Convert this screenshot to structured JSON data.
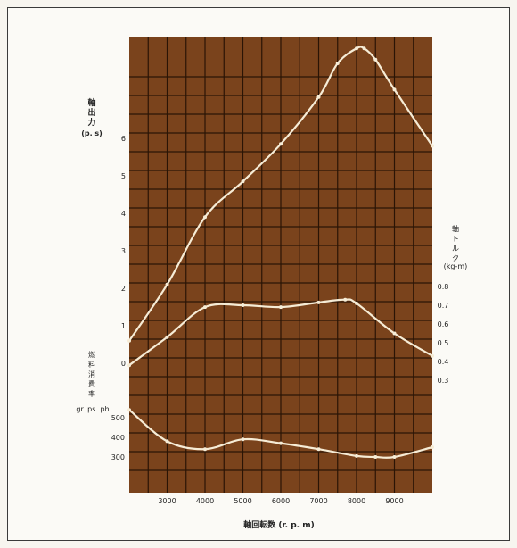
{
  "chart_data": {
    "type": "line",
    "xlabel": "軸回転数 (r. p. m)",
    "x_ticks": [
      3000,
      4000,
      5000,
      6000,
      7000,
      8000,
      9000
    ],
    "xlim": [
      2000,
      10000
    ],
    "axes": {
      "power": {
        "label_lines": [
          "軸",
          "出",
          "力"
        ],
        "unit": "(p. s)",
        "ticks": [
          0,
          1,
          2,
          3,
          4,
          5,
          6
        ],
        "ylim": [
          -0.6,
          9.0
        ]
      },
      "torque": {
        "label_lines": [
          "軸",
          "ト",
          "ル",
          "ク"
        ],
        "unit": "(kg-m)",
        "ticks": [
          0.8,
          0.7,
          0.6,
          0.5,
          0.4,
          0.3
        ],
        "ylim": [
          0.3,
          0.8
        ]
      },
      "fuel": {
        "label_lines": [
          "燃",
          "料",
          "消",
          "費",
          "率"
        ],
        "unit": "gr. ps. ph",
        "ticks": [
          500,
          400,
          300
        ],
        "ylim": [
          300,
          500
        ]
      }
    },
    "series": [
      {
        "axis": "power",
        "x": [
          2000,
          3000,
          4000,
          5000,
          6000,
          7000,
          7500,
          8000,
          8200,
          8500,
          9000,
          10000
        ],
        "y": [
          0.6,
          2.1,
          3.9,
          4.85,
          5.85,
          7.1,
          8.0,
          8.4,
          8.4,
          8.1,
          7.3,
          5.8
        ]
      },
      {
        "axis": "torque",
        "x": [
          2000,
          3000,
          4000,
          5000,
          6000,
          7000,
          7700,
          8000,
          9000,
          10000
        ],
        "y": [
          0.38,
          0.53,
          0.69,
          0.7,
          0.69,
          0.715,
          0.73,
          0.71,
          0.55,
          0.43
        ]
      },
      {
        "axis": "fuel",
        "x": [
          2000,
          3000,
          4000,
          5000,
          6000,
          7000,
          8000,
          8500,
          9000,
          10000
        ],
        "y": [
          540,
          380,
          340,
          390,
          370,
          340,
          305,
          300,
          300,
          350
        ]
      }
    ],
    "colors": {
      "plot_bg": "#7a431c",
      "grid": "#2a1405",
      "curve": "#f6ecd6"
    },
    "grid": true
  }
}
